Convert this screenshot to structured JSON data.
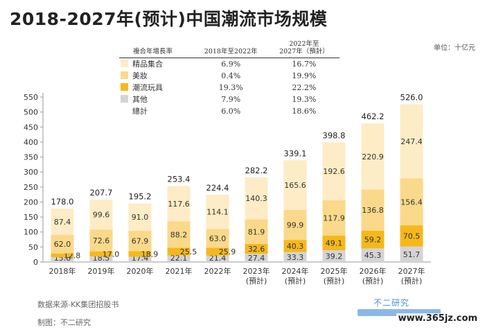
{
  "title": "2018-2027年(预计)中国潮流市场规模",
  "unit": "单位：十亿元",
  "cagr_table": {
    "headers": [
      "複合年增長率",
      "2018年至2022年",
      "2022年至\n2027年（預計）"
    ],
    "rows": [
      {
        "label": "精品集合",
        "v1": "6.9%",
        "v2": "16.7%",
        "color": "#fdecc5"
      },
      {
        "label": "美妝",
        "v1": "0.4%",
        "v2": "19.9%",
        "color": "#fad98a"
      },
      {
        "label": "潮流玩具",
        "v1": "19.3%",
        "v2": "22.2%",
        "color": "#f5b81c"
      },
      {
        "label": "其他",
        "v1": "7.9%",
        "v2": "19.3%",
        "color": "#d4d4d4"
      },
      {
        "label": "總計",
        "v1": "6.0%",
        "v2": "18.6%",
        "color": ""
      }
    ]
  },
  "footer": {
    "source": "数据来源-KK集团招股书",
    "maker": "制图：不二研究",
    "brand": "不二研究",
    "watermark": "www.365jz.com"
  },
  "chart_data": {
    "type": "bar",
    "stacked": true,
    "categories": [
      "2018年",
      "2019年",
      "2020年",
      "2021年",
      "2022年",
      "2023年\n(預計)",
      "2024年\n(預計)",
      "2025年\n(預計)",
      "2026年\n(預計)",
      "2027年\n(預計)"
    ],
    "ylim": [
      0,
      550
    ],
    "yticks": [
      0,
      50,
      100,
      150,
      200,
      250,
      300,
      350,
      400,
      450,
      500,
      550
    ],
    "grid": false,
    "series": [
      {
        "name": "其他",
        "values": [
          15.8,
          18.5,
          17.4,
          22.1,
          21.4,
          27.4,
          33.3,
          39.2,
          45.3,
          51.7
        ],
        "color": "#d4d4d4"
      },
      {
        "name": "潮流玩具",
        "values": [
          12.8,
          17.0,
          18.9,
          25.5,
          25.9,
          32.6,
          40.3,
          49.1,
          59.2,
          70.5
        ],
        "color": "#f5b81c"
      },
      {
        "name": "美妝",
        "values": [
          62.0,
          72.6,
          67.9,
          88.2,
          63.0,
          81.9,
          99.9,
          117.9,
          136.8,
          156.4
        ],
        "color": "#fad98a"
      },
      {
        "name": "精品集合",
        "values": [
          87.4,
          99.6,
          91.0,
          117.6,
          114.1,
          140.3,
          165.6,
          192.6,
          220.9,
          247.4
        ],
        "color": "#fdecc5"
      }
    ],
    "totals": [
      178.0,
      207.7,
      195.2,
      253.4,
      224.4,
      282.2,
      339.1,
      398.8,
      462.2,
      526.0
    ]
  }
}
